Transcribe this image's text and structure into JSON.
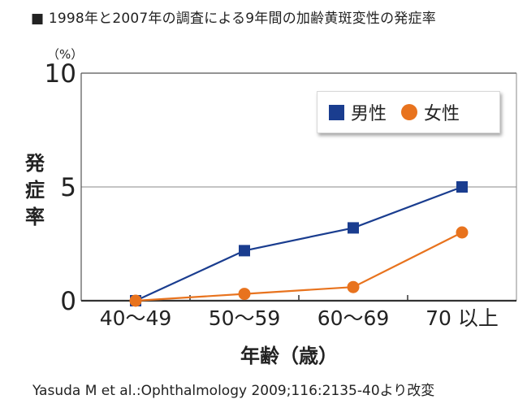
{
  "title": "■ 1998年と2007年の調査による9年間の加齢黄斑変性の発症率",
  "credit": "Yasuda M et al.:Ophthalmology 2009;116:2135-40より改変",
  "chart_data": {
    "type": "line",
    "unit": "（%）",
    "ylabel": "発症率",
    "xlabel": "年齢（歳）",
    "categories": [
      "40～49",
      "50～59",
      "60～69",
      "70 以上"
    ],
    "ylim": [
      0,
      10
    ],
    "yticks": [
      0,
      5,
      10
    ],
    "grid": "horizontal",
    "legend_position": "top-right",
    "series": [
      {
        "name": "男性",
        "color": "#1a3d8f",
        "marker": "square",
        "values": [
          0.0,
          2.2,
          3.2,
          5.0
        ]
      },
      {
        "name": "女性",
        "color": "#e8731e",
        "marker": "circle",
        "values": [
          0.0,
          0.3,
          0.6,
          3.0
        ]
      }
    ]
  }
}
